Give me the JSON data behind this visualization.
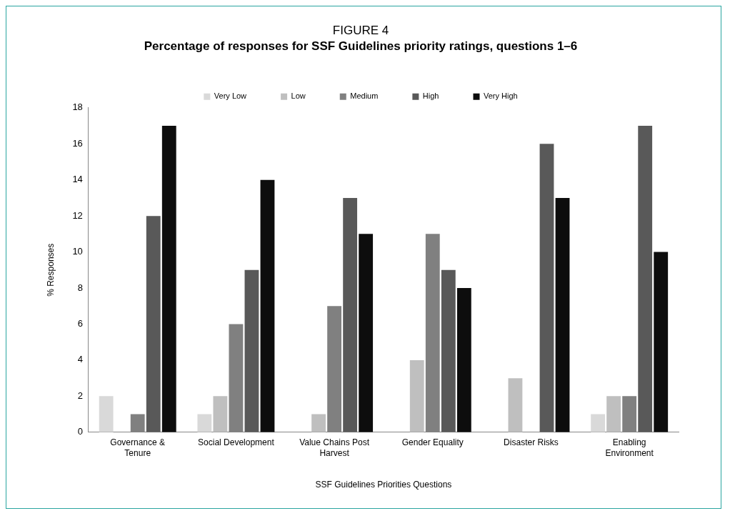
{
  "chart_data": {
    "type": "bar",
    "title": "FIGURE 4",
    "subtitle": "Percentage of responses for SSF Guidelines priority ratings, questions 1–6",
    "xlabel": "SSF Guidelines Priorities Questions",
    "ylabel": "% Responses",
    "categories": [
      "Governance & Tenure",
      "Social Development",
      "Value Chains Post Harvest",
      "Gender Equality",
      "Disaster Risks",
      "Enabling Environment"
    ],
    "series": [
      {
        "name": "Very Low",
        "color": "#d9d9d9",
        "values": [
          2,
          1,
          0,
          0,
          0,
          1
        ]
      },
      {
        "name": "Low",
        "color": "#bfbfbf",
        "values": [
          0,
          2,
          1,
          4,
          3,
          2
        ]
      },
      {
        "name": "Medium",
        "color": "#808080",
        "values": [
          1,
          6,
          7,
          11,
          0,
          2
        ]
      },
      {
        "name": "High",
        "color": "#595959",
        "values": [
          12,
          9,
          13,
          9,
          16,
          17
        ]
      },
      {
        "name": "Very High",
        "color": "#0d0d0d",
        "values": [
          17,
          14,
          11,
          8,
          13,
          10
        ]
      }
    ],
    "ylim": [
      0,
      18
    ],
    "yticks": [
      0,
      2,
      4,
      6,
      8,
      10,
      12,
      14,
      16,
      18
    ],
    "grid": false,
    "legend": "top"
  }
}
